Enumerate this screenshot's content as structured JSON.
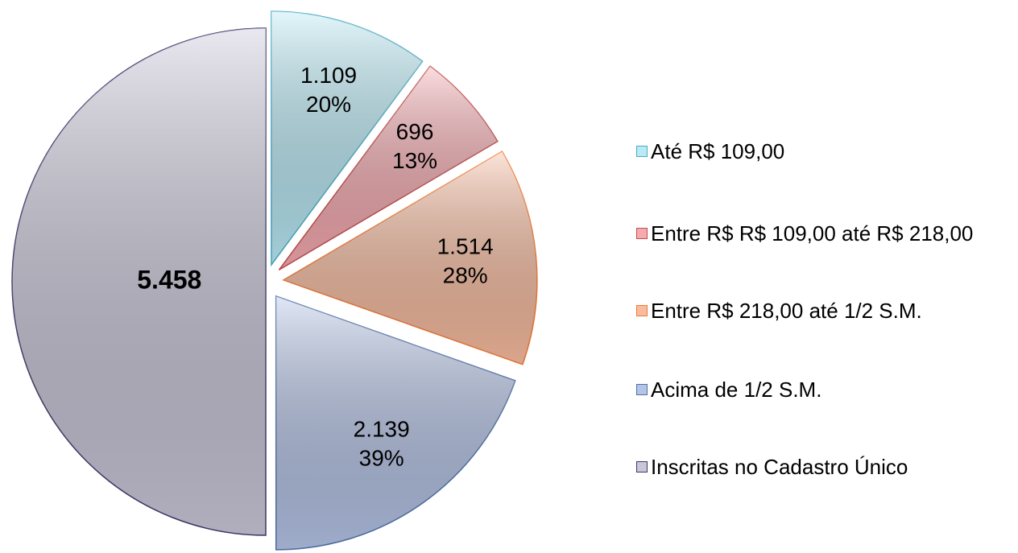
{
  "chart_data": {
    "type": "pie",
    "categories": [
      "Até R$ 109,00",
      "Entre R$ R$ 109,00 até R$ 218,00",
      "Entre R$ 218,00 até 1/2 S.M.",
      "Acima de 1/2 S.M.",
      "Inscritas no Cadastro Único"
    ],
    "values": [
      1109,
      696,
      1514,
      2139,
      5458
    ],
    "value_labels": [
      "1.109",
      "696",
      "1.514",
      "2.139",
      "5.458"
    ],
    "percents": [
      20,
      13,
      28,
      39,
      null
    ],
    "percent_labels": [
      "20%",
      "13%",
      "28%",
      "39%",
      null
    ],
    "colors": [
      "#b9eaf6",
      "#f6aab0",
      "#f9bc9f",
      "#b4c3e6",
      "#c9c6d8"
    ],
    "stroke_colors": [
      "#4bacc6",
      "#c0504d",
      "#f07a36",
      "#4f71a8",
      "#3c3a6a"
    ],
    "legend": "right"
  }
}
